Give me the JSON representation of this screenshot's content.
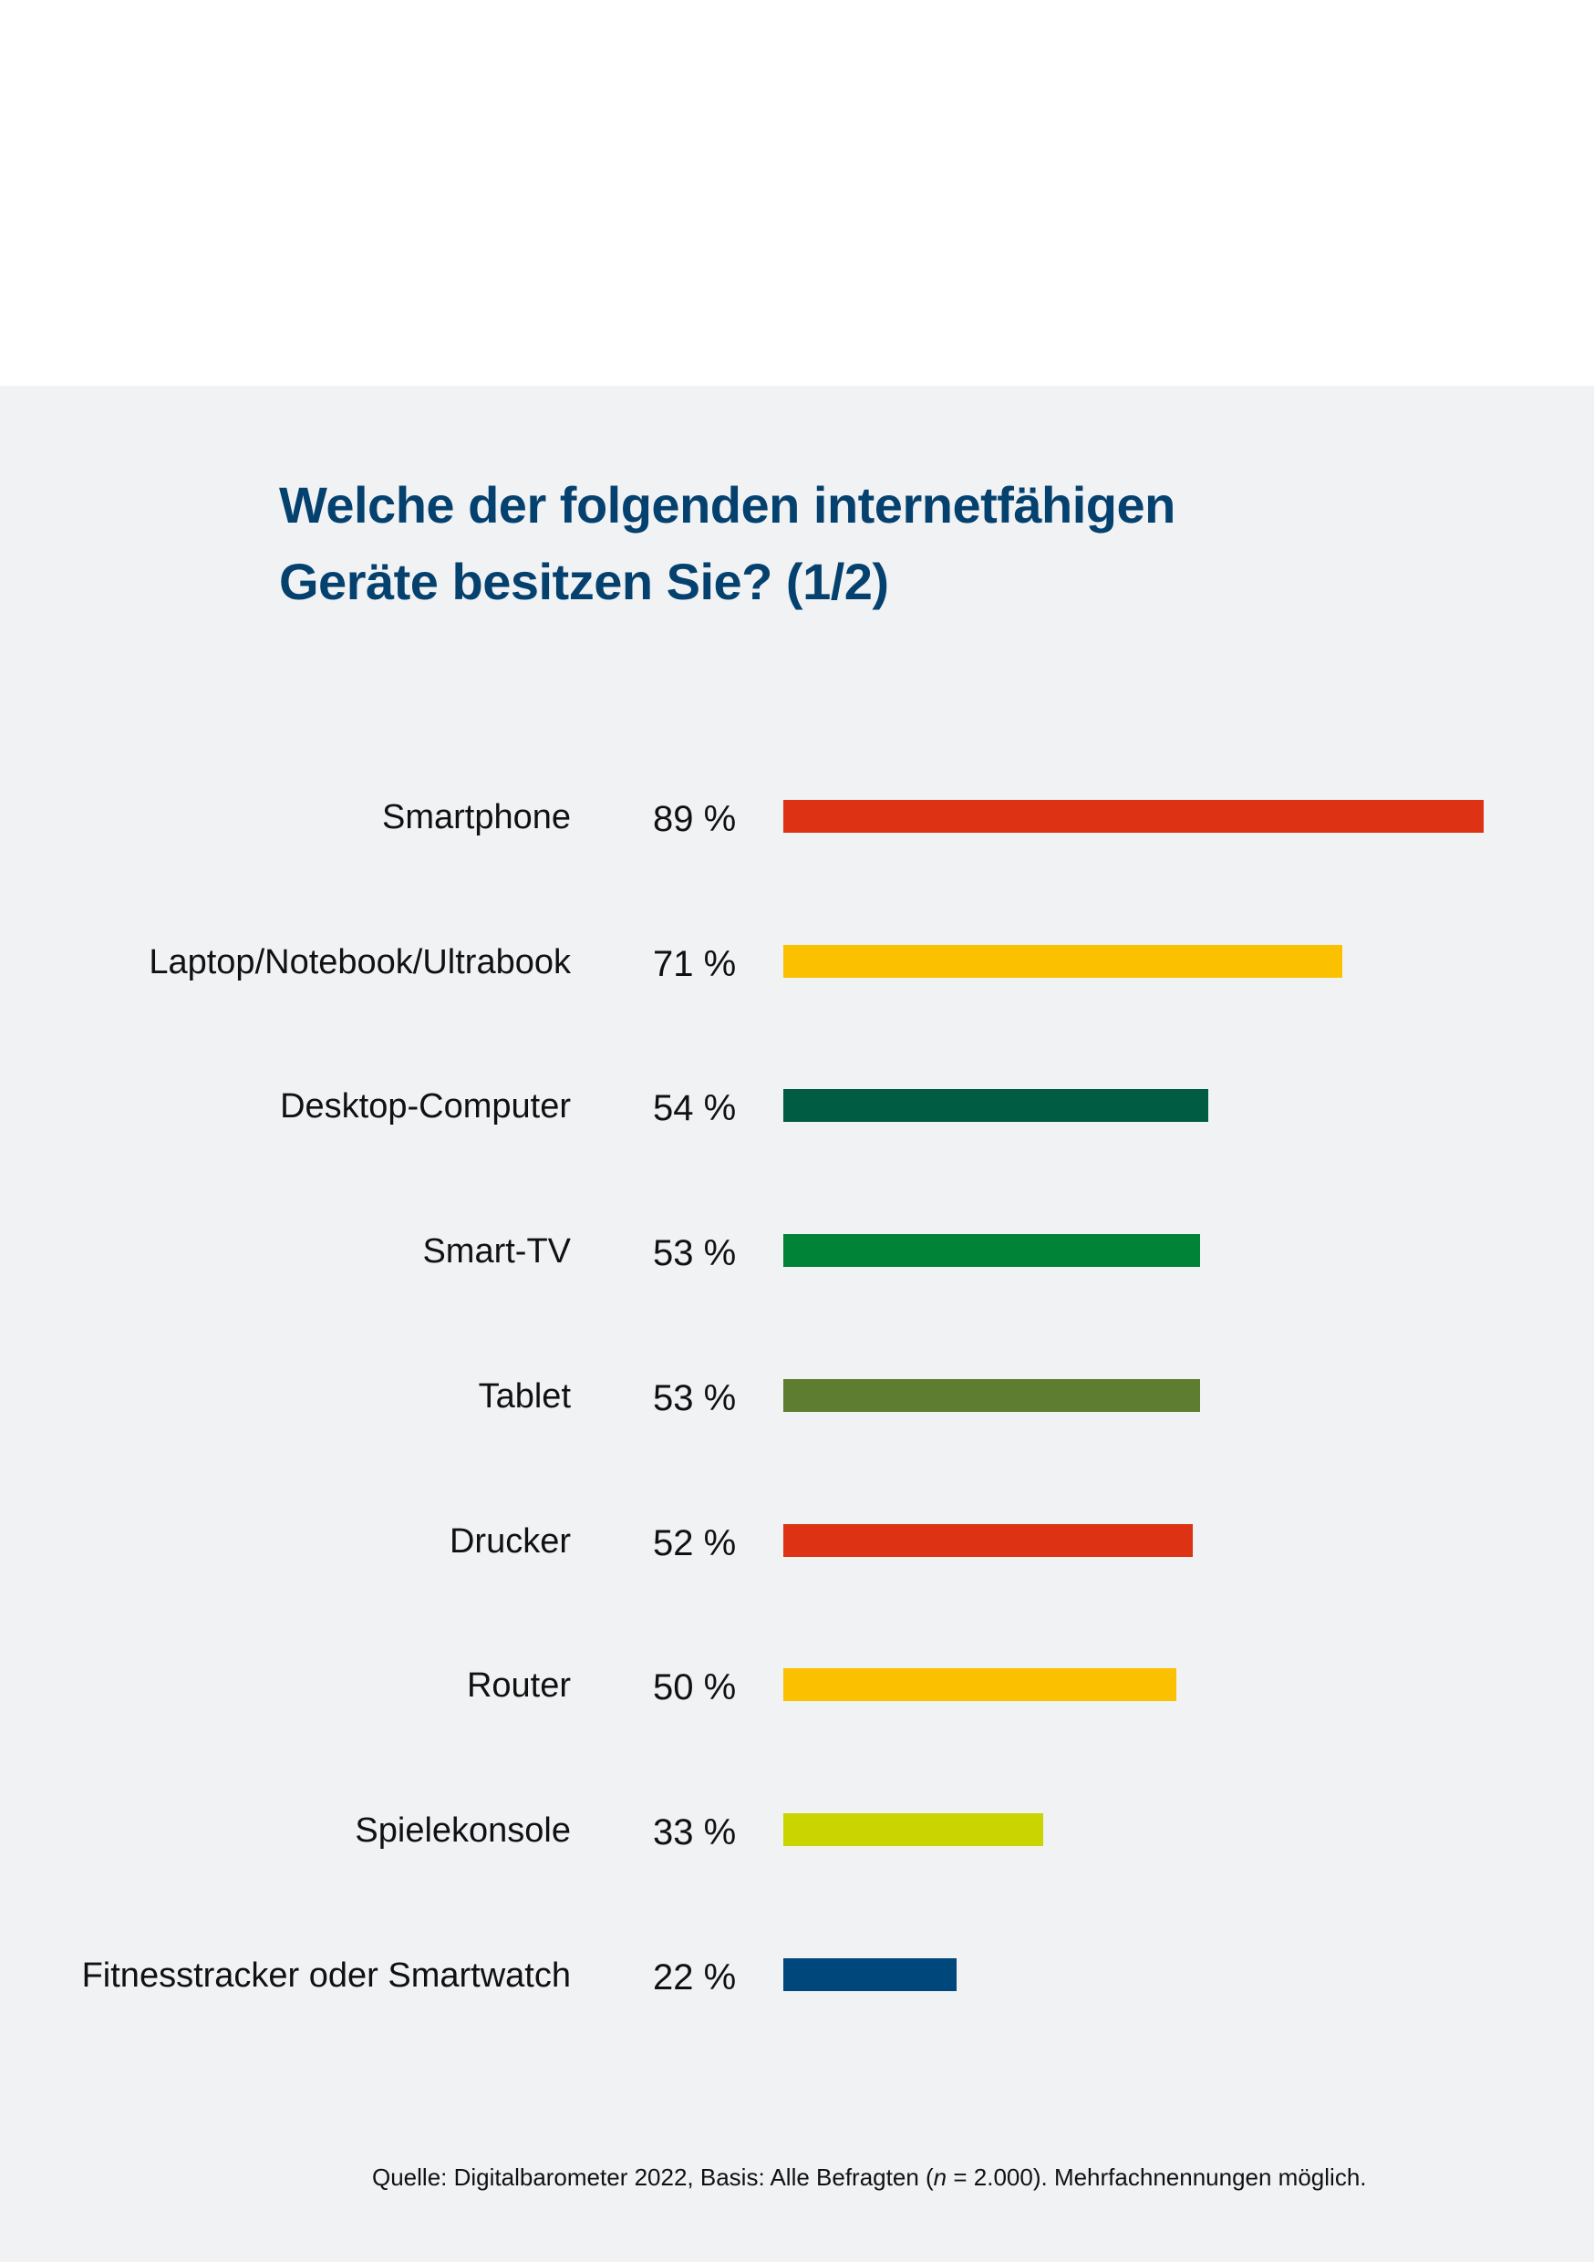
{
  "chart_data": {
    "type": "bar",
    "orientation": "horizontal",
    "title": "Welche der folgenden internetfähigen Geräte besitzen Sie? (1/2)",
    "title_lines": [
      "Welche der folgenden internetfähigen",
      "Geräte besitzen Sie? (1/2)"
    ],
    "categories": [
      "Smartphone",
      "Laptop/Notebook/Ultrabook",
      "Desktop-Computer",
      "Smart-TV",
      "Tablet",
      "Drucker",
      "Router",
      "Spielekonsole",
      "Fitnesstracker oder Smartwatch"
    ],
    "values": [
      89,
      71,
      54,
      53,
      53,
      52,
      50,
      33,
      22
    ],
    "value_labels": [
      "89 %",
      "71 %",
      "54 %",
      "53 %",
      "53 %",
      "52 %",
      "50 %",
      "33 %",
      "22 %"
    ],
    "colors": [
      "#dd3214",
      "#fbc000",
      "#005c43",
      "#008237",
      "#5e7d31",
      "#dd3214",
      "#fbc000",
      "#c9d400",
      "#00477b"
    ],
    "unit": "%",
    "xlabel": "",
    "ylabel": "",
    "xlim": [
      0,
      89
    ],
    "grid": false,
    "legend": "none",
    "source": {
      "prefix": "Quelle: Digitalbarometer 2022, Basis: Alle Befragten (",
      "n_symbol": "n",
      "suffix": " = 2.000). Mehrfachnennungen möglich."
    }
  }
}
